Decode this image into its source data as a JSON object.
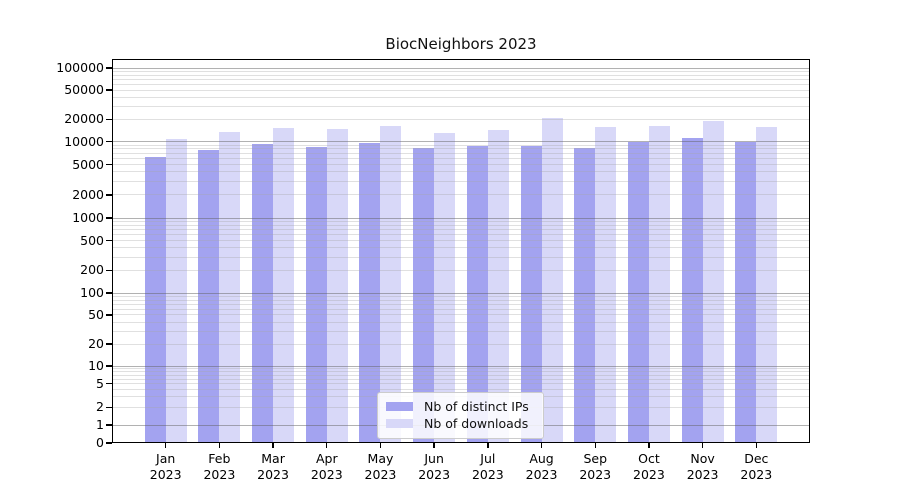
{
  "chart_data": {
    "type": "bar",
    "title": "BiocNeighbors 2023",
    "categories": [
      "Jan 2023",
      "Feb 2023",
      "Mar 2023",
      "Apr 2023",
      "May 2023",
      "Jun 2023",
      "Jul 2023",
      "Aug 2023",
      "Sep 2023",
      "Oct 2023",
      "Nov 2023",
      "Dec 2023"
    ],
    "series": [
      {
        "name": "Nb of distinct IPs",
        "color": "#a3a3f0",
        "values": [
          6250,
          7800,
          9200,
          8600,
          9600,
          8300,
          8700,
          8650,
          8300,
          9900,
          11150,
          9850
        ]
      },
      {
        "name": "Nb of downloads",
        "color": "#d8d8f8",
        "values": [
          10800,
          13400,
          15500,
          14800,
          16300,
          13000,
          14300,
          21100,
          15900,
          16100,
          19150,
          15900
        ]
      }
    ],
    "xlabel": "",
    "ylabel": "",
    "ylim": [
      0,
      100000
    ],
    "yscale": "log-like with zero baseline",
    "y_ticks": [
      0,
      1,
      2,
      5,
      10,
      20,
      50,
      100,
      200,
      500,
      1000,
      2000,
      5000,
      10000,
      20000,
      50000,
      100000
    ],
    "grid": true,
    "legend_position": "lower center"
  },
  "x_axis": {
    "months": [
      "Jan",
      "Feb",
      "Mar",
      "Apr",
      "May",
      "Jun",
      "Jul",
      "Aug",
      "Sep",
      "Oct",
      "Nov",
      "Dec"
    ],
    "year": "2023"
  },
  "colors": {
    "distinct_ips": "#a3a3f0",
    "downloads": "#d8d8f8",
    "grid_major": "rgba(100,100,100,0.50)",
    "grid_minor": "rgba(165,165,165,0.35)",
    "legend_border": "#cccccc"
  }
}
